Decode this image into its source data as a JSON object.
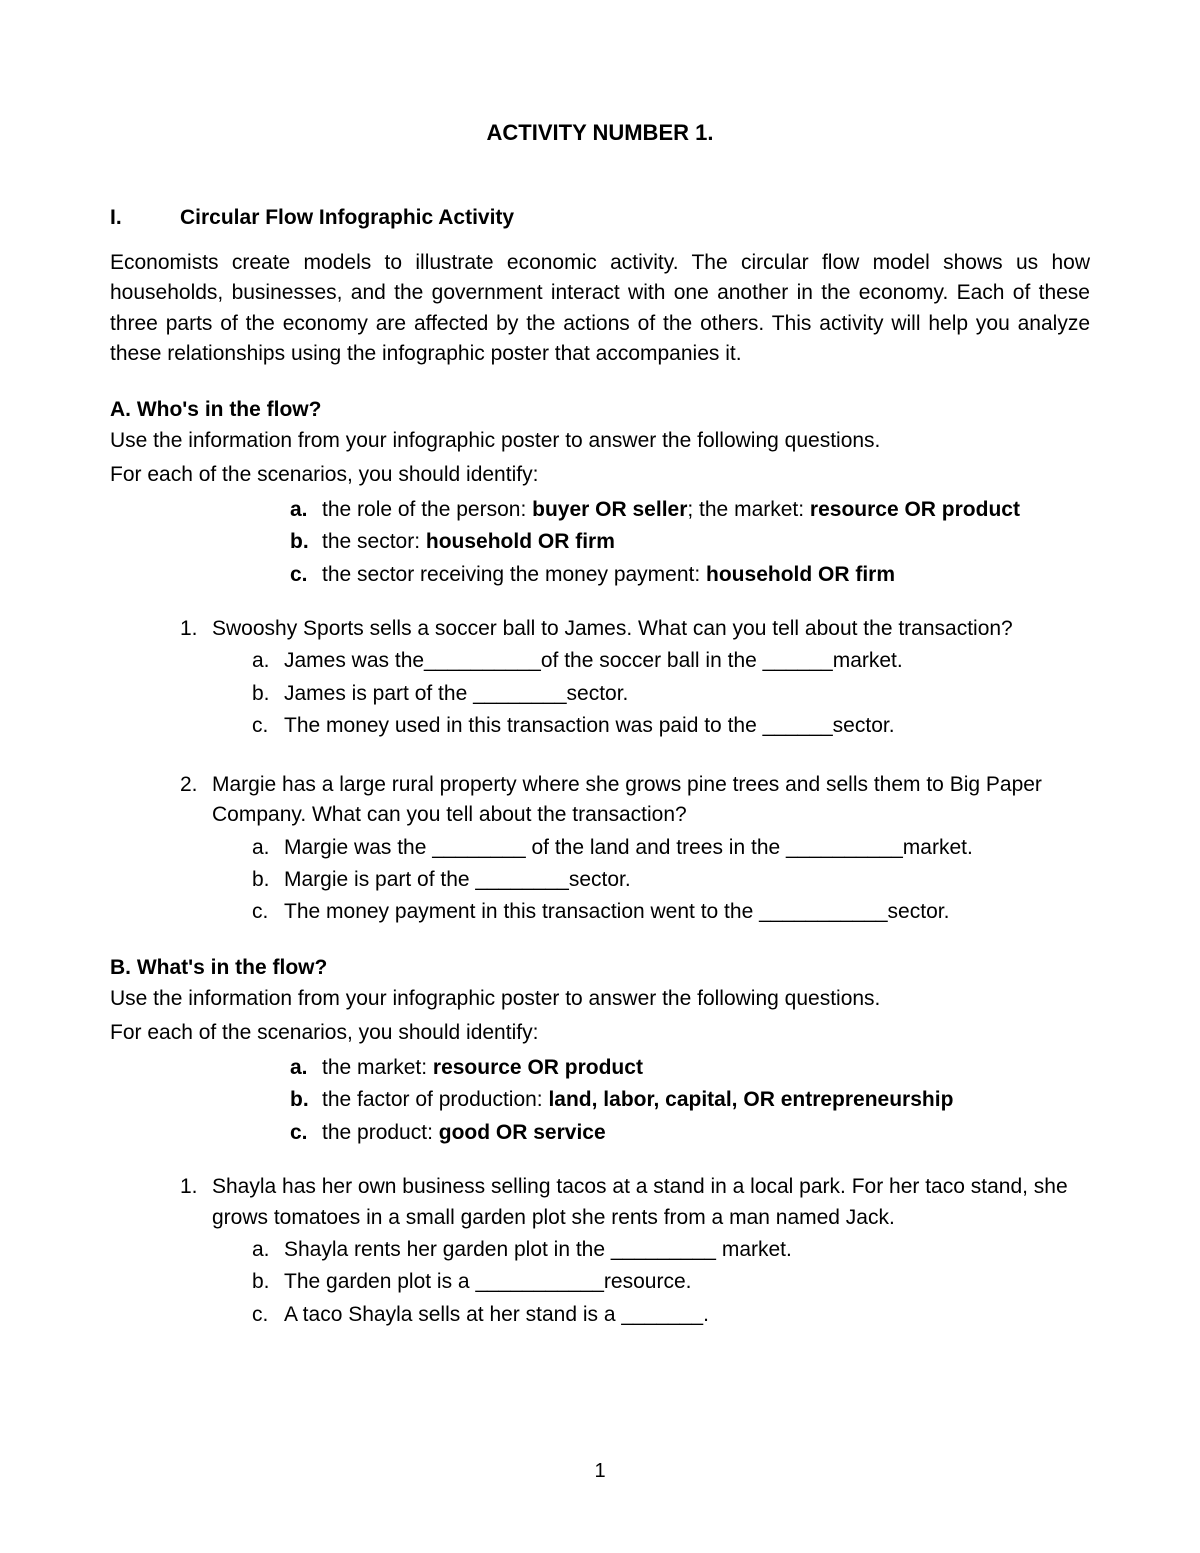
{
  "title": "ACTIVITY NUMBER 1.",
  "section": {
    "num": "I.",
    "title": "Circular Flow Infographic Activity"
  },
  "intro": "Economists create models to illustrate economic activity. The circular flow model shows us how households, businesses, and the government interact with one another in the economy. Each of these three parts of the economy are affected by the actions of the others. This activity will help you analyze these relationships using the infographic poster that accompanies it.",
  "partA": {
    "header": "A. Who's in the flow?",
    "intro1": "Use the information from your infographic poster to answer the following questions.",
    "intro2": "For each of the scenarios, you should identify:",
    "identify": [
      {
        "letter": "a.",
        "plain": "the role of the person: ",
        "bold": "buyer OR seller",
        "plain2": "; the market: ",
        "bold2": "resource OR product"
      },
      {
        "letter": "b.",
        "plain": "the sector: ",
        "bold": "household OR firm"
      },
      {
        "letter": "c.",
        "plain": "the sector receiving the money payment: ",
        "bold": "household OR firm"
      }
    ],
    "questions": [
      {
        "num": "1.",
        "text": "Swooshy Sports sells a soccer ball to James. What can you tell about the transaction?",
        "answers": [
          {
            "letter": "a.",
            "text": "James was the__________of the soccer ball in the ______market."
          },
          {
            "letter": "b.",
            "text": "James is part of the ________sector."
          },
          {
            "letter": "c.",
            "text": "The money used in this transaction was paid to the ______sector."
          }
        ]
      },
      {
        "num": "2.",
        "text": "Margie has a large rural property where she grows pine trees and sells them to Big Paper Company. What can you tell about the transaction?",
        "answers": [
          {
            "letter": "a.",
            "text": "Margie was the ________ of the land and trees in the __________market."
          },
          {
            "letter": "b.",
            "text": "Margie is part of the ________sector."
          },
          {
            "letter": "c.",
            "text": "The money payment in this transaction went to the ___________sector."
          }
        ]
      }
    ]
  },
  "partB": {
    "header": "B. What's in the flow?",
    "intro1": "Use the information from your infographic poster to answer the following questions.",
    "intro2": "For each of the scenarios, you should identify:",
    "identify": [
      {
        "letter": "a.",
        "plain": "the market: ",
        "bold": "resource OR product"
      },
      {
        "letter": "b.",
        "plain": "the factor of production: ",
        "bold": "land, labor, capital, OR entrepreneurship"
      },
      {
        "letter": "c.",
        "plain": "the product: ",
        "bold": "good OR service"
      }
    ],
    "questions": [
      {
        "num": "1.",
        "text": "Shayla has her own business selling tacos at a stand in a local park. For her taco stand, she grows tomatoes in a small garden plot she rents from a man named Jack.",
        "answers": [
          {
            "letter": "a.",
            "text": "Shayla rents her garden plot in the _________ market."
          },
          {
            "letter": "b.",
            "text": "The garden plot is a ___________resource."
          },
          {
            "letter": "c.",
            "text": "A taco Shayla sells at her stand is a _______."
          }
        ]
      }
    ]
  },
  "pageNumber": "1"
}
